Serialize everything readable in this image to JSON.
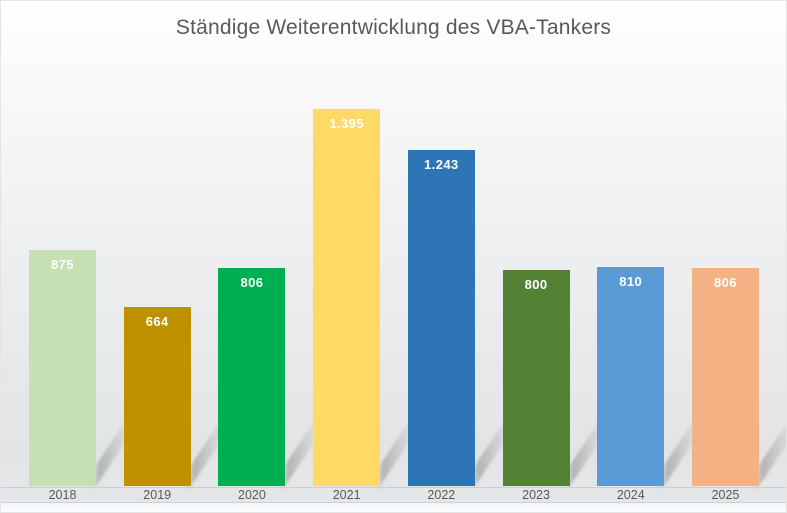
{
  "chart_data": {
    "type": "bar",
    "title": "Ständige Weiterentwicklung des VBA-Tankers",
    "title_color": "#595959",
    "categories": [
      "2018",
      "2019",
      "2020",
      "2021",
      "2022",
      "2023",
      "2024",
      "2025"
    ],
    "values": [
      875,
      664,
      806,
      1395,
      1243,
      800,
      810,
      806
    ],
    "value_labels": [
      "875",
      "664",
      "806",
      "1.395",
      "1.243",
      "800",
      "810",
      "806"
    ],
    "bar_colors": [
      "#c6e0b4",
      "#bf9000",
      "#00b050",
      "#ffd966",
      "#2e75b6",
      "#548235",
      "#5b9bd5",
      "#f4b183"
    ],
    "value_label_color": "#ffffff",
    "axis_text_color": "#595959",
    "xlabel": "",
    "ylabel": "",
    "ylim": [
      0,
      1500
    ],
    "grid": false,
    "legend": false
  }
}
